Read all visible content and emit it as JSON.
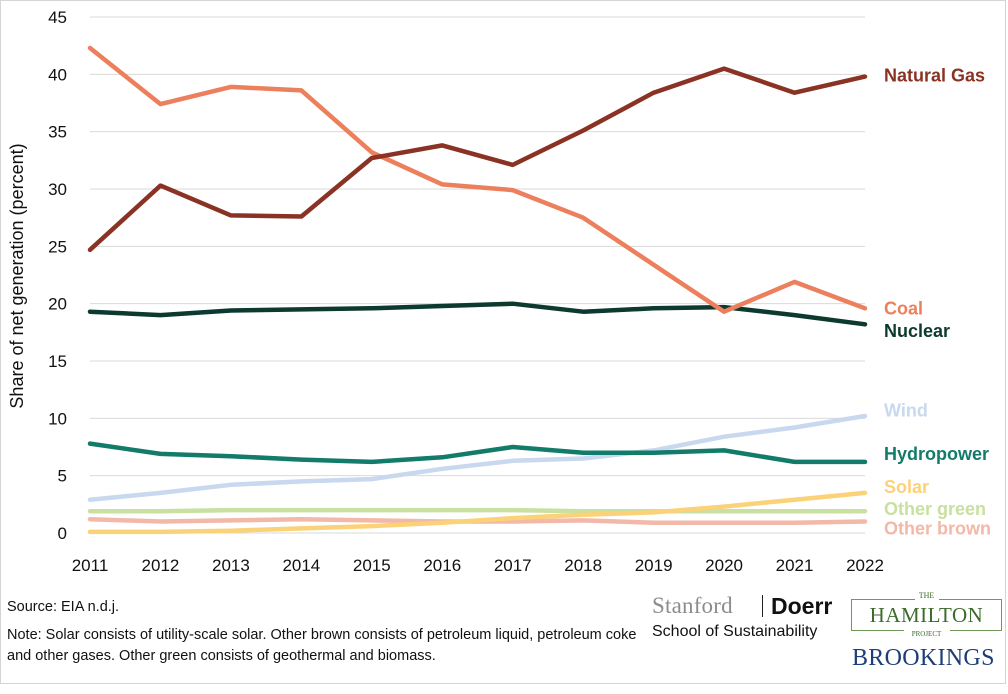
{
  "chart_data": {
    "type": "line",
    "title": "",
    "xlabel": "",
    "ylabel": "Share of net generation (percent)",
    "x": [
      2011,
      2012,
      2013,
      2014,
      2015,
      2016,
      2017,
      2018,
      2019,
      2020,
      2021,
      2022
    ],
    "ylim": [
      0,
      45
    ],
    "yticks": [
      0,
      5,
      10,
      15,
      20,
      25,
      30,
      35,
      40,
      45
    ],
    "xtick_labels": [
      "2011",
      "2012",
      "2013",
      "2014",
      "2015",
      "2016",
      "2017",
      "2018",
      "2019",
      "2020",
      "2021",
      "2022"
    ],
    "ytick_labels": [
      "0",
      "5",
      "10",
      "15",
      "20",
      "25",
      "30",
      "35",
      "40",
      "45"
    ],
    "grid": "horizontal",
    "legend": "inline-right",
    "series": [
      {
        "name": "Other brown",
        "color": "#f2b8a8",
        "values": [
          1.2,
          1.0,
          1.1,
          1.2,
          1.1,
          1.0,
          1.0,
          1.1,
          0.9,
          0.9,
          0.9,
          1.0
        ]
      },
      {
        "name": "Other green",
        "color": "#c8e0a0",
        "values": [
          1.9,
          1.9,
          2.0,
          2.0,
          2.0,
          2.0,
          2.0,
          1.9,
          1.9,
          1.9,
          1.9,
          1.9
        ]
      },
      {
        "name": "Solar",
        "color": "#fbd278",
        "values": [
          0.1,
          0.1,
          0.2,
          0.4,
          0.6,
          0.9,
          1.3,
          1.6,
          1.8,
          2.3,
          2.9,
          3.5
        ]
      },
      {
        "name": "Wind",
        "color": "#c8d8ee",
        "values": [
          2.9,
          3.5,
          4.2,
          4.5,
          4.7,
          5.6,
          6.3,
          6.5,
          7.2,
          8.4,
          9.2,
          10.2
        ]
      },
      {
        "name": "Hydropower",
        "color": "#127b6a",
        "values": [
          7.8,
          6.9,
          6.7,
          6.4,
          6.2,
          6.6,
          7.5,
          7.0,
          7.0,
          7.2,
          6.2,
          6.2
        ]
      },
      {
        "name": "Nuclear",
        "color": "#0c3a2e",
        "values": [
          19.3,
          19.0,
          19.4,
          19.5,
          19.6,
          19.8,
          20.0,
          19.3,
          19.6,
          19.7,
          19.0,
          18.2
        ]
      },
      {
        "name": "Coal",
        "color": "#ec7f5c",
        "values": [
          42.3,
          37.4,
          38.9,
          38.6,
          33.2,
          30.4,
          29.9,
          27.5,
          23.4,
          19.3,
          21.9,
          19.6
        ]
      },
      {
        "name": "Natural Gas",
        "color": "#8a3223",
        "values": [
          24.7,
          30.3,
          27.7,
          27.6,
          32.7,
          33.8,
          32.1,
          35.1,
          38.4,
          40.5,
          38.4,
          39.8
        ]
      }
    ],
    "labels": [
      {
        "text": "Natural Gas",
        "color": "#8a3223",
        "y": 39.9
      },
      {
        "text": "Coal",
        "color": "#ec7f5c",
        "y": 19.6
      },
      {
        "text": "Nuclear",
        "color": "#0c3a2e",
        "y": 17.6
      },
      {
        "text": "Wind",
        "color": "#c8d8ee",
        "y": 10.7
      },
      {
        "text": "Hydropower",
        "color": "#127b6a",
        "y": 6.9
      },
      {
        "text": "Solar",
        "color": "#fbd278",
        "y": 4.0
      },
      {
        "text": "Other green",
        "color": "#c8e0a0",
        "y": 2.1
      },
      {
        "text": "Other brown",
        "color": "#f2b8a8",
        "y": 0.4
      }
    ]
  },
  "footer": {
    "source": "Source: EIA n.d.j.",
    "note": "Note: Solar consists of utility-scale solar. Other brown consists of petroleum liquid, petroleum coke and other gases. Other green consists of geothermal and biomass."
  },
  "logos": {
    "stanford": "Stanford",
    "doerr": "Doerr",
    "school": "School of Sustainability",
    "hp_the": "THE",
    "hp_main": "HAMILTON",
    "hp_project": "PROJECT",
    "brookings": "BROOKINGS"
  }
}
